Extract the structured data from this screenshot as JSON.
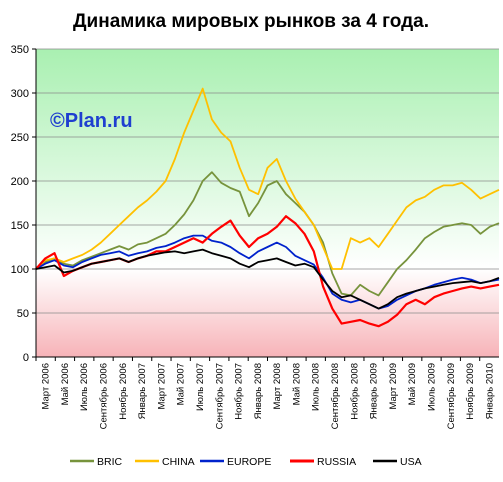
{
  "chart_data": {
    "type": "line",
    "title": "Динамика мировых рынков за 4 года.",
    "watermark": "©Plan.ru",
    "ylim": [
      0,
      350
    ],
    "yticks": [
      0,
      50,
      100,
      150,
      200,
      250,
      300,
      350
    ],
    "grid": "horizontal",
    "legend_position": "bottom",
    "background": {
      "above_100": "#a9f0b1",
      "below_100": "#f7b3b8",
      "baseline": 100
    },
    "x_labels": [
      "Март 2006",
      "Май 2006",
      "Июль 2006",
      "Сентябрь 2006",
      "Ноябрь 2006",
      "Январь 2007",
      "Март 2007",
      "Май 2007",
      "Июль 2007",
      "Сентябрь 2007",
      "Ноябрь 2007",
      "Январь 2008",
      "Март 2008",
      "Май 2008",
      "Июль 2008",
      "Сентябрь 2008",
      "Ноябрь 2008",
      "Январь 2009",
      "Март 2009",
      "Май 2009",
      "Июль 2009",
      "Сентябрь 2009",
      "Ноябрь 2009",
      "Январь 2010"
    ],
    "x_range_months": [
      0,
      50
    ],
    "series": [
      {
        "name": "BRIC",
        "color": "#77933c",
        "points": [
          [
            0,
            100
          ],
          [
            1,
            108
          ],
          [
            2,
            112
          ],
          [
            3,
            106
          ],
          [
            4,
            104
          ],
          [
            5,
            110
          ],
          [
            6,
            114
          ],
          [
            7,
            118
          ],
          [
            8,
            122
          ],
          [
            9,
            126
          ],
          [
            10,
            122
          ],
          [
            11,
            128
          ],
          [
            12,
            130
          ],
          [
            13,
            135
          ],
          [
            14,
            140
          ],
          [
            15,
            150
          ],
          [
            16,
            162
          ],
          [
            17,
            178
          ],
          [
            18,
            200
          ],
          [
            19,
            210
          ],
          [
            20,
            198
          ],
          [
            21,
            192
          ],
          [
            22,
            188
          ],
          [
            23,
            160
          ],
          [
            24,
            175
          ],
          [
            25,
            195
          ],
          [
            26,
            200
          ],
          [
            27,
            185
          ],
          [
            28,
            175
          ],
          [
            29,
            165
          ],
          [
            30,
            150
          ],
          [
            31,
            130
          ],
          [
            32,
            95
          ],
          [
            33,
            72
          ],
          [
            34,
            70
          ],
          [
            35,
            82
          ],
          [
            36,
            75
          ],
          [
            37,
            70
          ],
          [
            38,
            85
          ],
          [
            39,
            100
          ],
          [
            40,
            110
          ],
          [
            41,
            122
          ],
          [
            42,
            135
          ],
          [
            43,
            142
          ],
          [
            44,
            148
          ],
          [
            45,
            150
          ],
          [
            46,
            152
          ],
          [
            47,
            150
          ],
          [
            48,
            140
          ],
          [
            49,
            148
          ],
          [
            50,
            152
          ]
        ]
      },
      {
        "name": "CHINA",
        "color": "#ffc000",
        "points": [
          [
            0,
            100
          ],
          [
            1,
            110
          ],
          [
            2,
            112
          ],
          [
            3,
            108
          ],
          [
            4,
            112
          ],
          [
            5,
            116
          ],
          [
            6,
            122
          ],
          [
            7,
            130
          ],
          [
            8,
            140
          ],
          [
            9,
            150
          ],
          [
            10,
            160
          ],
          [
            11,
            170
          ],
          [
            12,
            178
          ],
          [
            13,
            188
          ],
          [
            14,
            200
          ],
          [
            15,
            225
          ],
          [
            16,
            255
          ],
          [
            17,
            280
          ],
          [
            18,
            305
          ],
          [
            19,
            270
          ],
          [
            20,
            255
          ],
          [
            21,
            245
          ],
          [
            22,
            215
          ],
          [
            23,
            190
          ],
          [
            24,
            185
          ],
          [
            25,
            215
          ],
          [
            26,
            225
          ],
          [
            27,
            200
          ],
          [
            28,
            180
          ],
          [
            29,
            165
          ],
          [
            30,
            150
          ],
          [
            31,
            125
          ],
          [
            32,
            100
          ],
          [
            33,
            100
          ],
          [
            34,
            135
          ],
          [
            35,
            130
          ],
          [
            36,
            135
          ],
          [
            37,
            125
          ],
          [
            38,
            140
          ],
          [
            39,
            155
          ],
          [
            40,
            170
          ],
          [
            41,
            178
          ],
          [
            42,
            182
          ],
          [
            43,
            190
          ],
          [
            44,
            195
          ],
          [
            45,
            195
          ],
          [
            46,
            198
          ],
          [
            47,
            190
          ],
          [
            48,
            180
          ],
          [
            49,
            185
          ],
          [
            50,
            190
          ]
        ]
      },
      {
        "name": "EUROPE",
        "color": "#0022cc",
        "points": [
          [
            0,
            100
          ],
          [
            1,
            106
          ],
          [
            2,
            110
          ],
          [
            3,
            104
          ],
          [
            4,
            102
          ],
          [
            5,
            108
          ],
          [
            6,
            112
          ],
          [
            7,
            116
          ],
          [
            8,
            118
          ],
          [
            9,
            120
          ],
          [
            10,
            115
          ],
          [
            11,
            118
          ],
          [
            12,
            120
          ],
          [
            13,
            124
          ],
          [
            14,
            126
          ],
          [
            15,
            130
          ],
          [
            16,
            135
          ],
          [
            17,
            138
          ],
          [
            18,
            138
          ],
          [
            19,
            132
          ],
          [
            20,
            130
          ],
          [
            21,
            125
          ],
          [
            22,
            118
          ],
          [
            23,
            112
          ],
          [
            24,
            120
          ],
          [
            25,
            125
          ],
          [
            26,
            130
          ],
          [
            27,
            125
          ],
          [
            28,
            115
          ],
          [
            29,
            110
          ],
          [
            30,
            105
          ],
          [
            31,
            90
          ],
          [
            32,
            72
          ],
          [
            33,
            65
          ],
          [
            34,
            62
          ],
          [
            35,
            65
          ],
          [
            36,
            60
          ],
          [
            37,
            55
          ],
          [
            38,
            58
          ],
          [
            39,
            65
          ],
          [
            40,
            70
          ],
          [
            41,
            75
          ],
          [
            42,
            78
          ],
          [
            43,
            82
          ],
          [
            44,
            85
          ],
          [
            45,
            88
          ],
          [
            46,
            90
          ],
          [
            47,
            88
          ],
          [
            48,
            84
          ],
          [
            49,
            86
          ],
          [
            50,
            88
          ]
        ]
      },
      {
        "name": "RUSSIA",
        "color": "#ff0000",
        "points": [
          [
            0,
            100
          ],
          [
            1,
            112
          ],
          [
            2,
            118
          ],
          [
            3,
            92
          ],
          [
            4,
            98
          ],
          [
            5,
            102
          ],
          [
            6,
            106
          ],
          [
            7,
            108
          ],
          [
            8,
            110
          ],
          [
            9,
            112
          ],
          [
            10,
            108
          ],
          [
            11,
            112
          ],
          [
            12,
            115
          ],
          [
            13,
            120
          ],
          [
            14,
            120
          ],
          [
            15,
            125
          ],
          [
            16,
            130
          ],
          [
            17,
            135
          ],
          [
            18,
            130
          ],
          [
            19,
            140
          ],
          [
            20,
            148
          ],
          [
            21,
            155
          ],
          [
            22,
            138
          ],
          [
            23,
            125
          ],
          [
            24,
            135
          ],
          [
            25,
            140
          ],
          [
            26,
            148
          ],
          [
            27,
            160
          ],
          [
            28,
            152
          ],
          [
            29,
            140
          ],
          [
            30,
            120
          ],
          [
            31,
            80
          ],
          [
            32,
            55
          ],
          [
            33,
            38
          ],
          [
            34,
            40
          ],
          [
            35,
            42
          ],
          [
            36,
            38
          ],
          [
            37,
            35
          ],
          [
            38,
            40
          ],
          [
            39,
            48
          ],
          [
            40,
            60
          ],
          [
            41,
            65
          ],
          [
            42,
            60
          ],
          [
            43,
            68
          ],
          [
            44,
            72
          ],
          [
            45,
            75
          ],
          [
            46,
            78
          ],
          [
            47,
            80
          ],
          [
            48,
            78
          ],
          [
            49,
            80
          ],
          [
            50,
            82
          ]
        ]
      },
      {
        "name": "USA",
        "color": "#000000",
        "points": [
          [
            0,
            100
          ],
          [
            1,
            102
          ],
          [
            2,
            104
          ],
          [
            3,
            96
          ],
          [
            4,
            98
          ],
          [
            5,
            102
          ],
          [
            6,
            106
          ],
          [
            7,
            108
          ],
          [
            8,
            110
          ],
          [
            9,
            112
          ],
          [
            10,
            108
          ],
          [
            11,
            112
          ],
          [
            12,
            115
          ],
          [
            13,
            117
          ],
          [
            14,
            119
          ],
          [
            15,
            120
          ],
          [
            16,
            118
          ],
          [
            17,
            120
          ],
          [
            18,
            122
          ],
          [
            19,
            118
          ],
          [
            20,
            115
          ],
          [
            21,
            112
          ],
          [
            22,
            106
          ],
          [
            23,
            102
          ],
          [
            24,
            108
          ],
          [
            25,
            110
          ],
          [
            26,
            112
          ],
          [
            27,
            108
          ],
          [
            28,
            104
          ],
          [
            29,
            106
          ],
          [
            30,
            102
          ],
          [
            31,
            88
          ],
          [
            32,
            75
          ],
          [
            33,
            68
          ],
          [
            34,
            70
          ],
          [
            35,
            65
          ],
          [
            36,
            60
          ],
          [
            37,
            55
          ],
          [
            38,
            60
          ],
          [
            39,
            68
          ],
          [
            40,
            72
          ],
          [
            41,
            75
          ],
          [
            42,
            78
          ],
          [
            43,
            80
          ],
          [
            44,
            82
          ],
          [
            45,
            84
          ],
          [
            46,
            85
          ],
          [
            47,
            86
          ],
          [
            48,
            84
          ],
          [
            49,
            86
          ],
          [
            50,
            90
          ]
        ]
      }
    ]
  }
}
